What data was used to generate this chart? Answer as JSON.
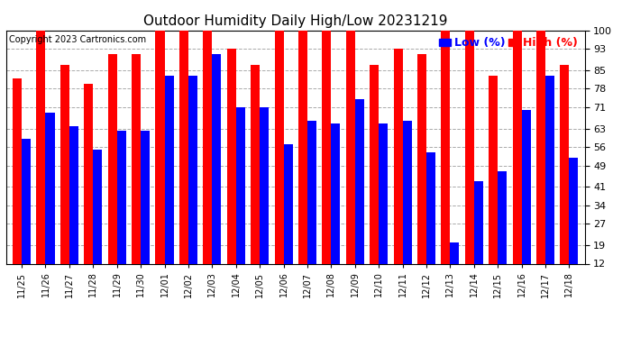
{
  "title": "Outdoor Humidity Daily High/Low 20231219",
  "copyright": "Copyright 2023 Cartronics.com",
  "legend_low": "Low (%)",
  "legend_high": "High (%)",
  "dates": [
    "11/25",
    "11/26",
    "11/27",
    "11/28",
    "11/29",
    "11/30",
    "12/01",
    "12/02",
    "12/03",
    "12/04",
    "12/05",
    "12/06",
    "12/07",
    "12/08",
    "12/09",
    "12/10",
    "12/11",
    "12/12",
    "12/13",
    "12/14",
    "12/15",
    "12/16",
    "12/17",
    "12/18"
  ],
  "high": [
    82,
    100,
    87,
    80,
    91,
    91,
    100,
    100,
    100,
    93,
    87,
    100,
    100,
    100,
    100,
    87,
    93,
    91,
    100,
    100,
    83,
    100,
    100,
    87
  ],
  "low": [
    59,
    69,
    64,
    55,
    62,
    62,
    83,
    83,
    91,
    71,
    71,
    57,
    66,
    65,
    74,
    65,
    66,
    54,
    20,
    43,
    47,
    70,
    83,
    52
  ],
  "ylim_min": 12,
  "ylim_max": 100,
  "yticks": [
    12,
    19,
    27,
    34,
    41,
    49,
    56,
    63,
    71,
    78,
    85,
    93,
    100
  ],
  "bar_width": 0.38,
  "high_color": "#ff0000",
  "low_color": "#0000ff",
  "bg_color": "#ffffff",
  "grid_color": "#aaaaaa",
  "title_color": "#000000",
  "title_fontsize": 11,
  "copyright_fontsize": 7,
  "legend_fontsize": 9
}
